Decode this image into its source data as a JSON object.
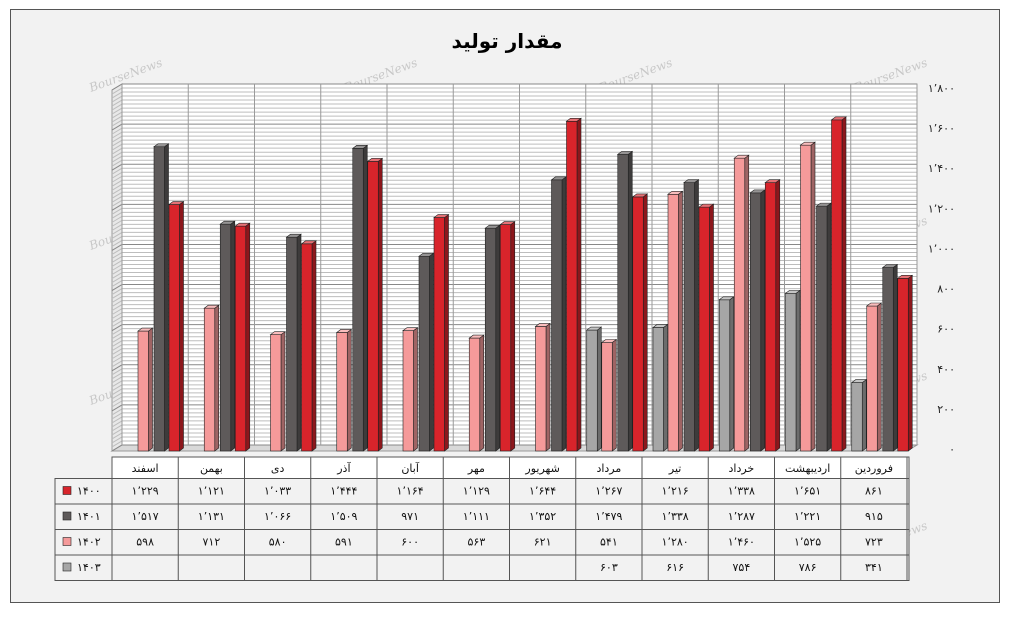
{
  "chart_data": {
    "type": "bar",
    "title": "مقدار تولید",
    "categories": [
      "فروردین",
      "اردیبهشت",
      "خرداد",
      "تیر",
      "مرداد",
      "شهریور",
      "مهر",
      "آبان",
      "آذر",
      "دی",
      "بهمن",
      "اسفند"
    ],
    "ylim": [
      0,
      1800
    ],
    "yticks": [
      0,
      200,
      400,
      600,
      800,
      1000,
      1200,
      1400,
      1600,
      1800
    ],
    "ytick_labels": [
      "۰",
      "۲۰۰",
      "۴۰۰",
      "۶۰۰",
      "۸۰۰",
      "۱٬۰۰۰",
      "۱٬۲۰۰",
      "۱٬۴۰۰",
      "۱٬۶۰۰",
      "۱٬۸۰۰"
    ],
    "grid": true,
    "legend": "data-table",
    "series": [
      {
        "name": "۱۴۰۰",
        "color": "#d8242b",
        "values": [
          861,
          1651,
          1338,
          1216,
          1267,
          1644,
          1129,
          1164,
          1444,
          1033,
          1121,
          1229
        ],
        "labels": [
          "۸۶۱",
          "۱٬۶۵۱",
          "۱٬۳۳۸",
          "۱٬۲۱۶",
          "۱٬۲۶۷",
          "۱٬۶۴۴",
          "۱٬۱۲۹",
          "۱٬۱۶۴",
          "۱٬۴۴۴",
          "۱٬۰۳۳",
          "۱٬۱۲۱",
          "۱٬۲۲۹"
        ]
      },
      {
        "name": "۱۴۰۱",
        "color": "#5e5a5a",
        "values": [
          915,
          1221,
          1287,
          1338,
          1479,
          1352,
          1111,
          971,
          1509,
          1066,
          1131,
          1517
        ],
        "labels": [
          "۹۱۵",
          "۱٬۲۲۱",
          "۱٬۲۸۷",
          "۱٬۳۳۸",
          "۱٬۴۷۹",
          "۱٬۳۵۲",
          "۱٬۱۱۱",
          "۹۷۱",
          "۱٬۵۰۹",
          "۱٬۰۶۶",
          "۱٬۱۳۱",
          "۱٬۵۱۷"
        ]
      },
      {
        "name": "۱۴۰۲",
        "color": "#f59a9a",
        "values": [
          723,
          1525,
          1460,
          1280,
          541,
          621,
          563,
          600,
          591,
          580,
          712,
          598
        ],
        "labels": [
          "۷۲۳",
          "۱٬۵۲۵",
          "۱٬۴۶۰",
          "۱٬۲۸۰",
          "۵۴۱",
          "۶۲۱",
          "۵۶۳",
          "۶۰۰",
          "۵۹۱",
          "۵۸۰",
          "۷۱۲",
          "۵۹۸"
        ]
      },
      {
        "name": "۱۴۰۳",
        "color": "#a6a6a6",
        "values": [
          341,
          786,
          754,
          616,
          603,
          null,
          null,
          null,
          null,
          null,
          null,
          null
        ],
        "labels": [
          "۳۴۱",
          "۷۸۶",
          "۷۵۴",
          "۶۱۶",
          "۶۰۳",
          "",
          "",
          "",
          "",
          "",
          "",
          ""
        ]
      }
    ],
    "watermark": "BourseNews"
  }
}
